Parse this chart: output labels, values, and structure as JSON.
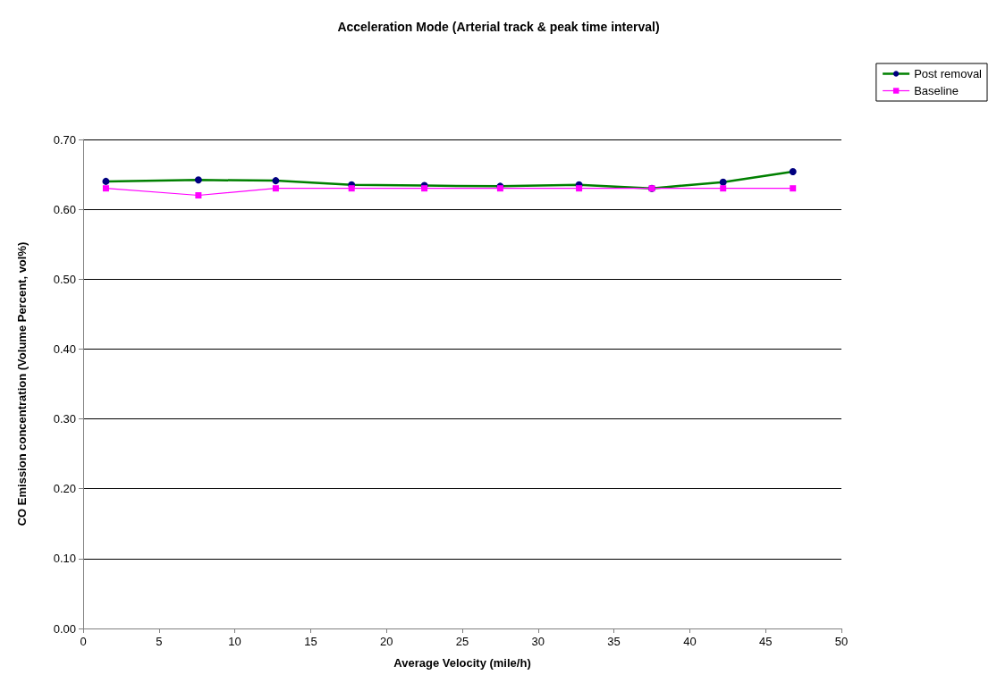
{
  "chart_data": {
    "type": "line",
    "title": "Acceleration Mode (Arterial track & peak time interval)",
    "xlabel": "Average Velocity (mile/h)",
    "ylabel": "CO Emission concentration (Volume Percent, vol%)",
    "series": [
      {
        "name": "Post removal",
        "color": "#008000",
        "marker": "circle",
        "x": [
          1.5,
          7.6,
          12.7,
          17.7,
          22.5,
          27.5,
          32.7,
          37.5,
          42.2,
          46.8
        ],
        "values": [
          0.64,
          0.642,
          0.641,
          0.635,
          0.634,
          0.633,
          0.635,
          0.63,
          0.639,
          0.654
        ]
      },
      {
        "name": "Baseline",
        "color": "#ff00ff",
        "marker": "square",
        "x": [
          1.5,
          7.6,
          12.7,
          17.7,
          22.5,
          27.5,
          32.7,
          37.5,
          42.2,
          46.8
        ],
        "values": [
          0.63,
          0.62,
          0.63,
          0.63,
          0.63,
          0.63,
          0.63,
          0.63,
          0.63,
          0.63
        ]
      }
    ],
    "xlim": [
      0,
      50
    ],
    "xticks": [
      0,
      5,
      10,
      15,
      20,
      25,
      30,
      35,
      40,
      45,
      50
    ],
    "ylim": [
      0,
      0.7
    ],
    "yticks": [
      {
        "value": 0,
        "label": "0.00"
      },
      {
        "value": 0.1,
        "label": "0.10"
      },
      {
        "value": 0.2,
        "label": "0.20"
      },
      {
        "value": 0.3,
        "label": "0.30"
      },
      {
        "value": 0.4,
        "label": "0.40"
      },
      {
        "value": 0.5,
        "label": "0.50"
      },
      {
        "value": 0.6,
        "label": "0.60"
      },
      {
        "value": 0.7,
        "label": "0.70"
      }
    ],
    "grid": "y",
    "legend": "top right"
  }
}
